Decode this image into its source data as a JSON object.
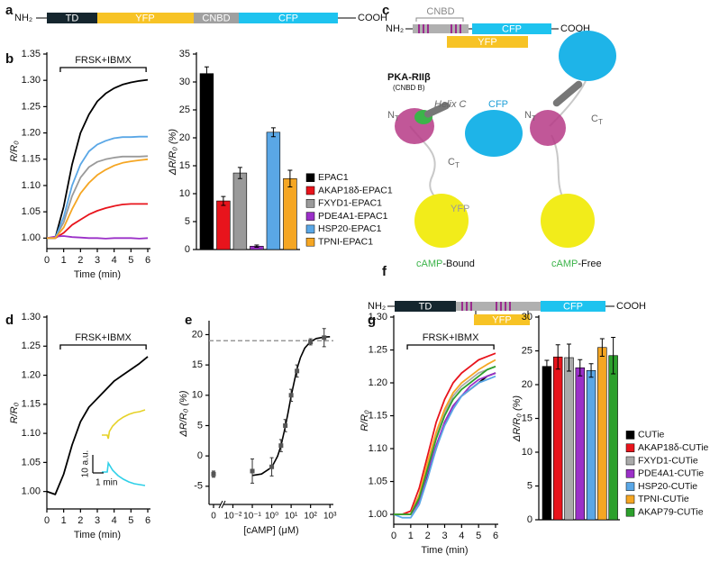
{
  "panel_labels": [
    "a",
    "b",
    "c",
    "d",
    "e",
    "f",
    "g"
  ],
  "diagrams": {
    "a": {
      "n_term": "NH₂",
      "domains": [
        "TD",
        "YFP",
        "CNBD",
        "CFP"
      ],
      "c_term": "COOH"
    },
    "c": {
      "n_term": "NH₂",
      "cnbd": "CNBD",
      "yfp": "YFP",
      "cfp": "CFP",
      "c_term": "COOH",
      "pka_label": "PKA-RIIβ",
      "cnbd_b": "(CNBD B)",
      "helix": "Helix C",
      "cfp_struct": "CFP",
      "yfp_struct": "YFP",
      "termini": [
        {
          "main": "N",
          "sub": "T"
        },
        {
          "main": "C",
          "sub": "T"
        },
        {
          "main": "N",
          "sub": "T"
        },
        {
          "main": "C",
          "sub": "T"
        }
      ],
      "states": [
        {
          "ligand": "cAMP",
          "state": "-Bound"
        },
        {
          "ligand": "cAMP",
          "state": "-Free"
        }
      ]
    },
    "f": {
      "n_term": "NH₂",
      "td": "TD",
      "yfp": "YFP",
      "cfp": "CFP",
      "c_term": "COOH"
    }
  },
  "chart_data": [
    {
      "type": "line",
      "y_label": "R/R₀",
      "x_label": "Time (min)",
      "x": [
        0,
        0.5,
        1,
        1.5,
        2,
        2.5,
        3,
        3.5,
        4,
        4.5,
        5,
        5.5,
        6
      ],
      "xlim": [
        0,
        6
      ],
      "xticks": [
        0,
        1,
        2,
        3,
        4,
        5,
        6
      ],
      "ylim": [
        0.98,
        1.35
      ],
      "yticks": [
        {
          "value": 1,
          "label": "1.00"
        },
        1.05,
        {
          "value": 1.1,
          "label": "1.10"
        },
        1.15,
        {
          "value": 1.2,
          "label": "1.20"
        },
        1.25,
        {
          "value": 1.3,
          "label": "1.30"
        },
        1.35
      ],
      "annotation": {
        "text": "FRSK+IBMX",
        "x": [
          0.8,
          5.9
        ]
      },
      "series": [
        {
          "color": "#000000",
          "values": [
            1.0,
            1.0,
            1.06,
            1.14,
            1.2,
            1.235,
            1.26,
            1.275,
            1.285,
            1.292,
            1.296,
            1.299,
            1.301
          ]
        },
        {
          "color": "#e8141c",
          "values": [
            1.0,
            1.0,
            1.01,
            1.025,
            1.035,
            1.045,
            1.052,
            1.057,
            1.061,
            1.064,
            1.065,
            1.065,
            1.065
          ]
        },
        {
          "color": "#9a9a9a",
          "values": [
            1.0,
            1.0,
            1.03,
            1.08,
            1.115,
            1.135,
            1.145,
            1.15,
            1.153,
            1.155,
            1.155,
            1.155,
            1.156
          ]
        },
        {
          "color": "#9b30c8",
          "values": [
            1.0,
            1.003,
            1.004,
            1.002,
            1.001,
            1.0,
            1.0,
            0.999,
            1.0,
            1.0,
            1.0,
            0.999,
            1.0
          ]
        },
        {
          "color": "#5aa7e6",
          "values": [
            1.0,
            1.0,
            1.04,
            1.1,
            1.14,
            1.165,
            1.178,
            1.185,
            1.19,
            1.192,
            1.192,
            1.193,
            1.193
          ]
        },
        {
          "color": "#f5a623",
          "values": [
            1.0,
            1.0,
            1.02,
            1.055,
            1.085,
            1.105,
            1.12,
            1.13,
            1.138,
            1.143,
            1.146,
            1.148,
            1.15
          ]
        }
      ]
    },
    {
      "type": "bar",
      "y_label": "ΔR/R₀ (%)",
      "categories": [
        "EPAC1",
        "AKAP18δ-EPAC1",
        "FXYD1-EPAC1",
        "PDE4A1-EPAC1",
        "HSP20-EPAC1",
        "TPNI-EPAC1"
      ],
      "values": [
        31.5,
        8.7,
        13.7,
        0.6,
        21,
        12.7
      ],
      "errors": [
        1.2,
        0.8,
        1,
        0.2,
        0.8,
        1.5
      ],
      "colors": [
        "#000000",
        "#e8141c",
        "#9a9a9a",
        "#9b30c8",
        "#5aa7e6",
        "#f5a623"
      ],
      "ylim": [
        0,
        35
      ],
      "yticks": [
        0,
        5,
        10,
        15,
        20,
        25,
        30,
        35
      ],
      "legend": "right"
    },
    {
      "type": "line",
      "y_label": "R/R₀",
      "x_label": "Time (min)",
      "x": [
        0,
        0.5,
        1,
        1.5,
        2,
        2.5,
        3,
        3.5,
        4,
        4.5,
        5,
        5.5,
        6
      ],
      "xlim": [
        0,
        6
      ],
      "xticks": [
        0,
        1,
        2,
        3,
        4,
        5,
        6
      ],
      "ylim": [
        0.97,
        1.3
      ],
      "yticks": [
        {
          "value": 1,
          "label": "1.00"
        },
        1.05,
        {
          "value": 1.1,
          "label": "1.10"
        },
        1.15,
        {
          "value": 1.2,
          "label": "1.20"
        },
        1.25,
        {
          "value": 1.3,
          "label": "1.30"
        }
      ],
      "annotation": {
        "text": "FRSK+IBMX",
        "x": [
          0.8,
          5.9
        ]
      },
      "series": [
        {
          "color": "#000000",
          "values": [
            1.0,
            0.995,
            1.03,
            1.08,
            1.12,
            1.145,
            1.16,
            1.175,
            1.19,
            1.2,
            1.21,
            1.22,
            1.232
          ]
        }
      ],
      "insets": {
        "series": [
          {
            "color": "#e6d228",
            "x": [
              0,
              0.5,
              0.6,
              0.7,
              1,
              1.5,
              2,
              2.5,
              3,
              3.5,
              4
            ],
            "values": [
              0,
              0,
              -2,
              2,
              5,
              8,
              10,
              11.5,
              12.5,
              13,
              14
            ]
          },
          {
            "color": "#2fd0e8",
            "x": [
              0,
              0.5,
              0.6,
              0.7,
              1,
              1.5,
              2,
              2.5,
              3,
              3.5,
              4
            ],
            "values": [
              0,
              0,
              5,
              4,
              1,
              -2,
              -4,
              -5.5,
              -6.5,
              -7,
              -7.5
            ]
          }
        ],
        "scale_y": {
          "value": 10,
          "label": "10 a.u."
        },
        "scale_x": {
          "value": 1,
          "label": "1 min"
        }
      }
    },
    {
      "type": "scatter",
      "y_label": "ΔR/R₀ (%)",
      "x_label": "[cAMP] (μM)",
      "xlog": true,
      "xlim": [
        0.005,
        1500
      ],
      "xticks": [
        0,
        {
          "value": 0.01,
          "label": "10⁻²"
        },
        {
          "value": 0.1,
          "label": "10⁻¹"
        },
        {
          "value": 1,
          "label": "10⁰"
        },
        {
          "value": 10,
          "label": "10¹"
        },
        {
          "value": 100,
          "label": "10²"
        },
        {
          "value": 1000,
          "label": "10³"
        }
      ],
      "ylim": [
        -8,
        22
      ],
      "yticks": [
        -5,
        0,
        5,
        10,
        15,
        20
      ],
      "x": [
        0,
        0.1,
        1,
        3,
        5,
        10,
        20,
        100,
        500
      ],
      "values": [
        -3,
        -2.5,
        -1.8,
        1.7,
        5,
        10,
        14,
        18.8,
        19.5
      ],
      "errors": [
        0.5,
        2,
        1.5,
        1,
        1,
        1,
        1,
        0.5,
        1.5
      ],
      "fit_x": [
        0.1,
        0.3,
        1,
        2,
        3,
        5,
        7,
        10,
        20,
        30,
        50,
        100,
        200,
        500,
        1000
      ],
      "fit_y": [
        -3.22,
        -2.98,
        -1.86,
        -0.04,
        1.72,
        4.79,
        7.2,
        9.86,
        14.34,
        16.2,
        17.76,
        18.87,
        19.36,
        19.59,
        19.66
      ],
      "reference_line": 19
    },
    {
      "type": "line",
      "y_label": "R/R₀",
      "x_label": "Time (min)",
      "x": [
        0,
        0.5,
        1,
        1.5,
        2,
        2.5,
        3,
        3.5,
        4,
        4.5,
        5,
        5.5,
        6
      ],
      "xlim": [
        0,
        6
      ],
      "xticks": [
        0,
        1,
        2,
        3,
        4,
        5,
        6
      ],
      "ylim": [
        0.985,
        1.3
      ],
      "yticks": [
        {
          "value": 1,
          "label": "1.00"
        },
        1.05,
        {
          "value": 1.1,
          "label": "1.10"
        },
        1.15,
        {
          "value": 1.2,
          "label": "1.20"
        },
        1.25,
        {
          "value": 1.3,
          "label": "1.30"
        }
      ],
      "annotation": {
        "text": "FRSK+IBMX",
        "x": [
          0.8,
          5.9
        ]
      },
      "series": [
        {
          "color": "#000000",
          "values": [
            1.0,
            1.0,
            1.0,
            1.02,
            1.06,
            1.1,
            1.14,
            1.165,
            1.18,
            1.19,
            1.2,
            1.21,
            1.215
          ]
        },
        {
          "color": "#e8141c",
          "values": [
            1.0,
            1.0,
            1.005,
            1.04,
            1.09,
            1.14,
            1.175,
            1.2,
            1.215,
            1.225,
            1.235,
            1.24,
            1.245
          ]
        },
        {
          "color": "#aaaaaa",
          "values": [
            1.0,
            1.0,
            1.0,
            1.03,
            1.075,
            1.12,
            1.155,
            1.18,
            1.195,
            1.205,
            1.215,
            1.22,
            1.225
          ]
        },
        {
          "color": "#9b30c8",
          "values": [
            1.0,
            1.0,
            1.0,
            1.02,
            1.065,
            1.105,
            1.14,
            1.165,
            1.18,
            1.195,
            1.205,
            1.21,
            1.215
          ]
        },
        {
          "color": "#5aa7e6",
          "values": [
            1.0,
            0.995,
            0.995,
            1.015,
            1.055,
            1.1,
            1.135,
            1.16,
            1.18,
            1.19,
            1.2,
            1.205,
            1.21
          ]
        },
        {
          "color": "#f5a623",
          "values": [
            1.0,
            1.0,
            1.0,
            1.03,
            1.08,
            1.125,
            1.16,
            1.185,
            1.2,
            1.21,
            1.22,
            1.228,
            1.235
          ]
        },
        {
          "color": "#2ca02c",
          "values": [
            1.0,
            1.0,
            1.0,
            1.025,
            1.07,
            1.115,
            1.15,
            1.175,
            1.19,
            1.2,
            1.21,
            1.22,
            1.225
          ]
        }
      ]
    },
    {
      "type": "bar",
      "y_label": "ΔR/R₀ (%)",
      "categories": [
        "CUTie",
        "AKAP18δ-CUTie",
        "FXYD1-CUTie",
        "PDE4A1-CUTie",
        "HSP20-CUTie",
        "TPNI-CUTie",
        "AKAP79-CUTie"
      ],
      "values": [
        22.7,
        24.1,
        24,
        22.5,
        22.1,
        25.5,
        24.3
      ],
      "errors": [
        0.9,
        1.8,
        2,
        1.2,
        1,
        1.3,
        2.7
      ],
      "colors": [
        "#000000",
        "#e8141c",
        "#aaaaaa",
        "#9b30c8",
        "#5aa7e6",
        "#f5a623",
        "#2ca02c"
      ],
      "ylim": [
        0,
        30
      ],
      "yticks": [
        0,
        5,
        10,
        15,
        20,
        25,
        30
      ],
      "legend": "right"
    }
  ]
}
